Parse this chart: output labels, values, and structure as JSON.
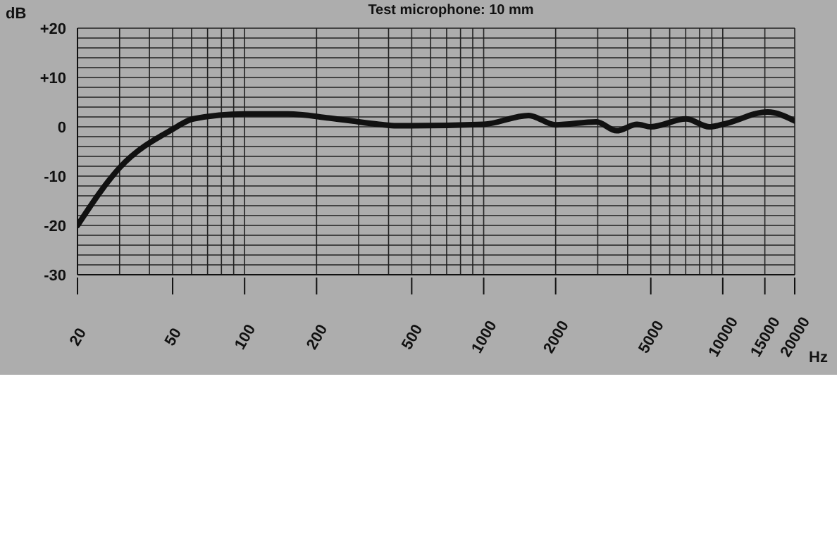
{
  "chart_data": {
    "type": "line",
    "title": "Test microphone: 10 mm",
    "xlabel": "Hz",
    "ylabel": "dB",
    "log": "x",
    "grid": true,
    "marker": "none",
    "line_style": "solid",
    "xlim": [
      20,
      20000
    ],
    "ylim": [
      -30,
      20
    ],
    "xticks": [
      20,
      {
        "value": 30,
        "label": null
      },
      {
        "value": 40,
        "label": null
      },
      50,
      {
        "value": 60,
        "label": null
      },
      {
        "value": 70,
        "label": null
      },
      {
        "value": 80,
        "label": null
      },
      {
        "value": 90,
        "label": null
      },
      100,
      200,
      {
        "value": 300,
        "label": null
      },
      {
        "value": 400,
        "label": null
      },
      500,
      {
        "value": 600,
        "label": null
      },
      {
        "value": 700,
        "label": null
      },
      {
        "value": 800,
        "label": null
      },
      {
        "value": 900,
        "label": null
      },
      1000,
      2000,
      {
        "value": 3000,
        "label": null
      },
      {
        "value": 4000,
        "label": null
      },
      5000,
      {
        "value": 6000,
        "label": null
      },
      {
        "value": 7000,
        "label": null
      },
      {
        "value": 8000,
        "label": null
      },
      {
        "value": 9000,
        "label": null
      },
      10000,
      15000,
      20000
    ],
    "yticks": [
      {
        "value": 20,
        "label": "+20"
      },
      {
        "value": 18,
        "label": null
      },
      {
        "value": 16,
        "label": null
      },
      {
        "value": 14,
        "label": null
      },
      {
        "value": 12,
        "label": null
      },
      {
        "value": 10,
        "label": "+10"
      },
      {
        "value": 8,
        "label": null
      },
      {
        "value": 6,
        "label": null
      },
      {
        "value": 4,
        "label": null
      },
      {
        "value": 2,
        "label": null
      },
      0,
      {
        "value": -2,
        "label": null
      },
      {
        "value": -4,
        "label": null
      },
      {
        "value": -6,
        "label": null
      },
      {
        "value": -8,
        "label": null
      },
      -10,
      {
        "value": -12,
        "label": null
      },
      {
        "value": -14,
        "label": null
      },
      {
        "value": -16,
        "label": null
      },
      {
        "value": -18,
        "label": null
      },
      -20,
      {
        "value": -22,
        "label": null
      },
      {
        "value": -24,
        "label": null
      },
      {
        "value": -26,
        "label": null
      },
      {
        "value": -28,
        "label": null
      },
      -30
    ],
    "series": [
      {
        "color": "#111111",
        "x": [
          20,
          30,
          50,
          61,
          100,
          152,
          225,
          365,
          432,
          493,
          1000,
          1540,
          2000,
          2960,
          3600,
          4380,
          5000,
          7030,
          8770,
          10000,
          15400,
          20000
        ],
        "values": [
          -20,
          -8.3,
          -0.5,
          1.6,
          2.6,
          2.6,
          1.8,
          0.5,
          0.2,
          0.2,
          0.5,
          2.3,
          0.4,
          1.0,
          -0.8,
          0.5,
          0,
          1.6,
          0,
          0.5,
          3,
          1.2
        ]
      }
    ]
  }
}
